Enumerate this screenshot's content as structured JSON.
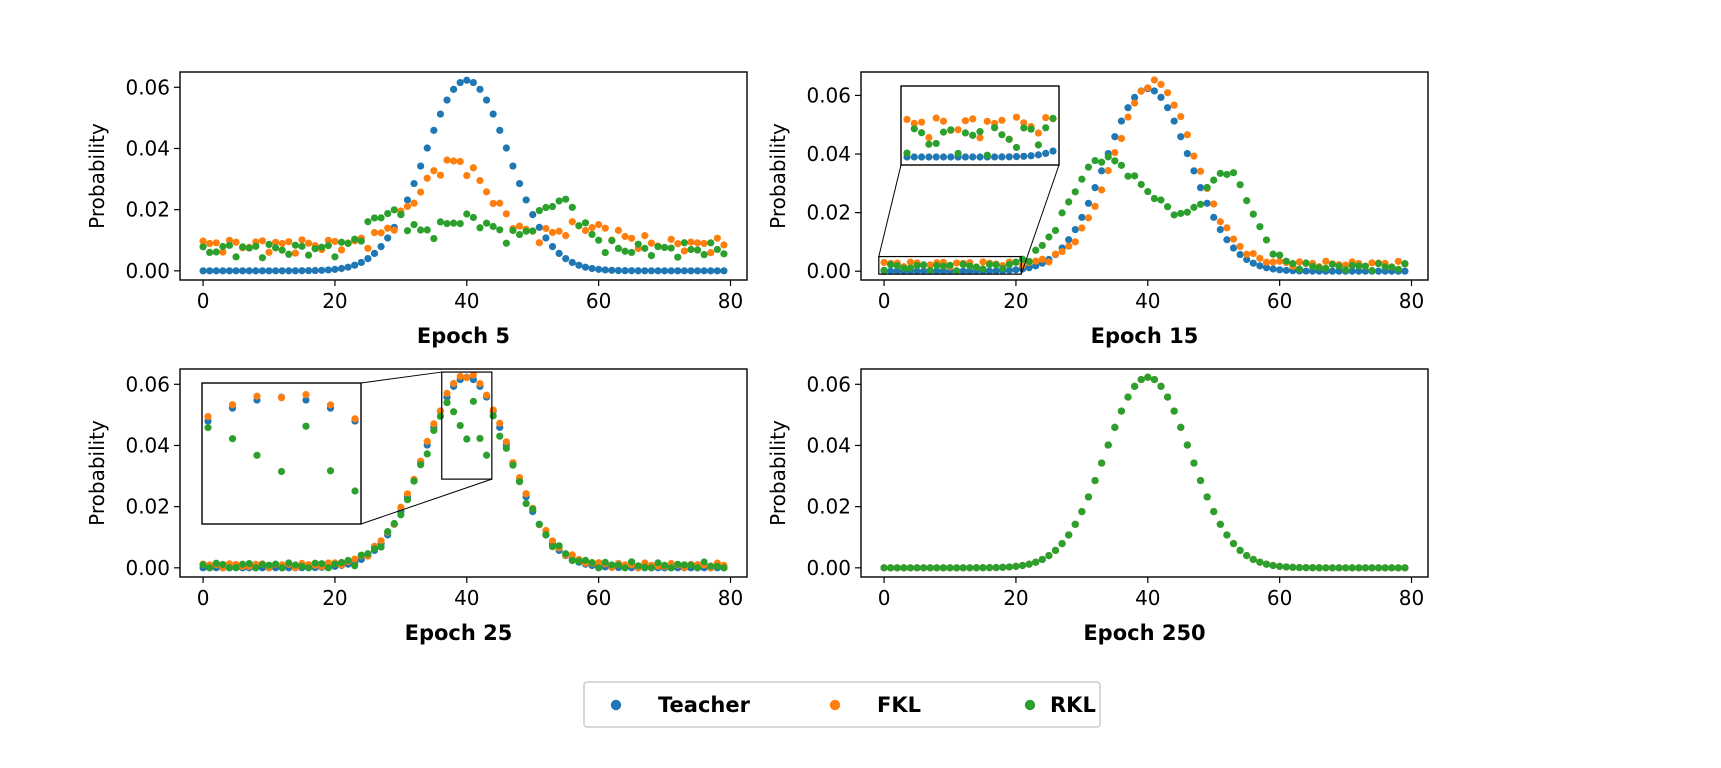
{
  "chart_data": [
    {
      "type": "scatter",
      "title": "Epoch 5",
      "xlabel": "Epoch 5",
      "ylabel": "Probability",
      "xlim": [
        -3.5,
        82.5
      ],
      "ylim": [
        -0.003,
        0.065
      ],
      "xticks": [
        "0",
        "20",
        "40",
        "60",
        "80"
      ],
      "yticks": [
        "0.00",
        "0.02",
        "0.04",
        "0.06"
      ],
      "series": [
        {
          "name": "Teacher",
          "color": "#1f77b4",
          "model": "gauss",
          "x": "0..79"
        },
        {
          "name": "FKL",
          "color": "#ff7f0e",
          "model": "noisy",
          "x": "0..79"
        },
        {
          "name": "RKL",
          "color": "#2ca02c",
          "model": "noisy",
          "x": "0..79"
        }
      ]
    },
    {
      "type": "scatter",
      "title": "Epoch 15",
      "xlabel": "Epoch 15",
      "ylabel": "Probability",
      "xlim": [
        -3.5,
        82.5
      ],
      "ylim": [
        -0.003,
        0.068
      ],
      "xticks": [
        "0",
        "20",
        "40",
        "60",
        "80"
      ],
      "yticks": [
        "0.00",
        "0.02",
        "0.04",
        "0.06"
      ],
      "inset": {
        "x_range": [
          0,
          20
        ],
        "y_range": [
          0,
          0.005
        ]
      },
      "series": [
        {
          "name": "Teacher",
          "color": "#1f77b4",
          "model": "gauss",
          "x": "0..79"
        },
        {
          "name": "FKL",
          "color": "#ff7f0e",
          "model": "shifted",
          "x": "0..79"
        },
        {
          "name": "RKL",
          "color": "#2ca02c",
          "model": "bimodal",
          "x": "0..79"
        }
      ]
    },
    {
      "type": "scatter",
      "title": "Epoch 25",
      "xlabel": "Epoch 25",
      "ylabel": "Probability",
      "xlim": [
        -3.5,
        82.5
      ],
      "ylim": [
        -0.003,
        0.065
      ],
      "xticks": [
        "0",
        "20",
        "40",
        "60",
        "80"
      ],
      "yticks": [
        "0.00",
        "0.02",
        "0.04",
        "0.06"
      ],
      "inset": {
        "x_range": [
          37,
          43
        ],
        "y_range": [
          0.03,
          0.064
        ]
      },
      "series": [
        {
          "name": "Teacher",
          "color": "#1f77b4",
          "model": "gauss",
          "x": "0..79"
        },
        {
          "name": "FKL",
          "color": "#ff7f0e",
          "model": "near",
          "x": "0..79"
        },
        {
          "name": "RKL",
          "color": "#2ca02c",
          "model": "near-rkl",
          "x": "0..79"
        }
      ]
    },
    {
      "type": "scatter",
      "title": "Epoch 250",
      "xlabel": "Epoch 250",
      "ylabel": "Probability",
      "xlim": [
        -3.5,
        82.5
      ],
      "ylim": [
        -0.003,
        0.065
      ],
      "xticks": [
        "0",
        "20",
        "40",
        "60",
        "80"
      ],
      "yticks": [
        "0.00",
        "0.02",
        "0.04",
        "0.06"
      ],
      "series": [
        {
          "name": "Teacher",
          "color": "#1f77b4",
          "model": "gauss",
          "x": "0..79"
        },
        {
          "name": "FKL",
          "color": "#ff7f0e",
          "model": "gauss",
          "x": "0..79"
        },
        {
          "name": "RKL",
          "color": "#2ca02c",
          "model": "gauss",
          "x": "0..79"
        }
      ]
    }
  ],
  "teacher": {
    "mean": 40,
    "std": 6.4,
    "peak": 0.0623
  },
  "legend": {
    "placement": "bottom-center",
    "items": [
      {
        "label": "Teacher",
        "color": "#1f77b4"
      },
      {
        "label": "FKL",
        "color": "#ff7f0e"
      },
      {
        "label": "RKL",
        "color": "#2ca02c"
      }
    ]
  }
}
